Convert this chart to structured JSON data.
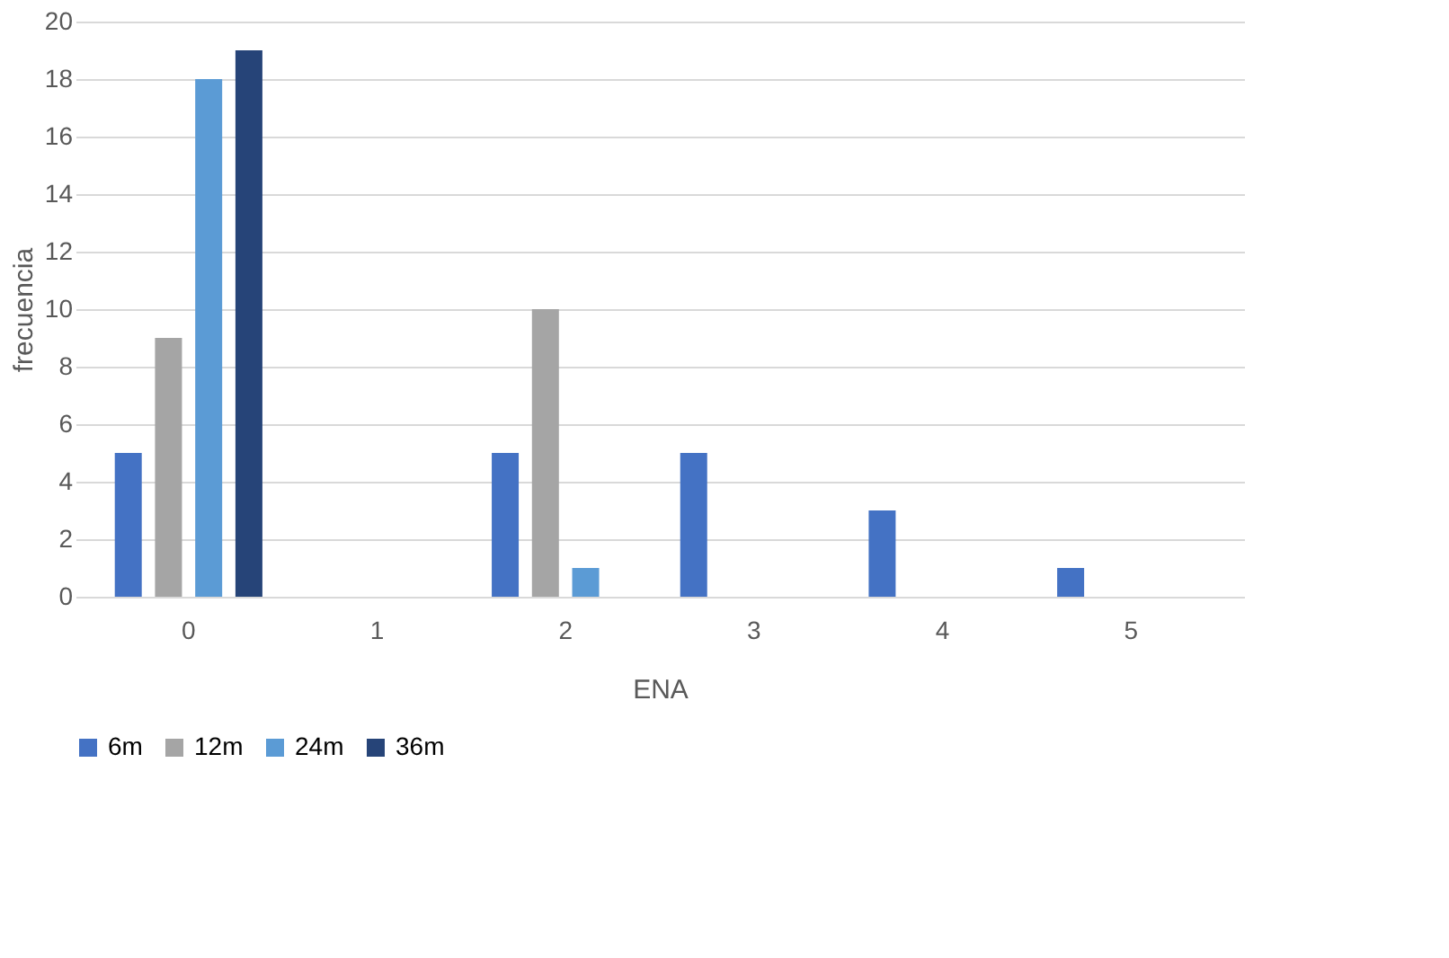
{
  "chart_data": {
    "type": "bar",
    "xlabel": "ENA",
    "ylabel": "frecuencia",
    "categories": [
      "0",
      "1",
      "2",
      "3",
      "4",
      "5"
    ],
    "series": [
      {
        "name": "6m",
        "color": "#4472c4",
        "values": [
          5,
          0,
          5,
          5,
          3,
          1
        ]
      },
      {
        "name": "12m",
        "color": "#a5a5a5",
        "values": [
          9,
          0,
          10,
          0,
          0,
          0
        ]
      },
      {
        "name": "24m",
        "color": "#5b9bd5",
        "values": [
          18,
          0,
          1,
          0,
          0,
          0
        ]
      },
      {
        "name": "36m",
        "color": "#264478",
        "values": [
          19,
          0,
          0,
          0,
          0,
          0
        ]
      }
    ],
    "ylim": [
      0,
      20
    ],
    "yticks": [
      0,
      2,
      4,
      6,
      8,
      10,
      12,
      14,
      16,
      18,
      20
    ],
    "grid": "y",
    "legend": "bottom"
  }
}
